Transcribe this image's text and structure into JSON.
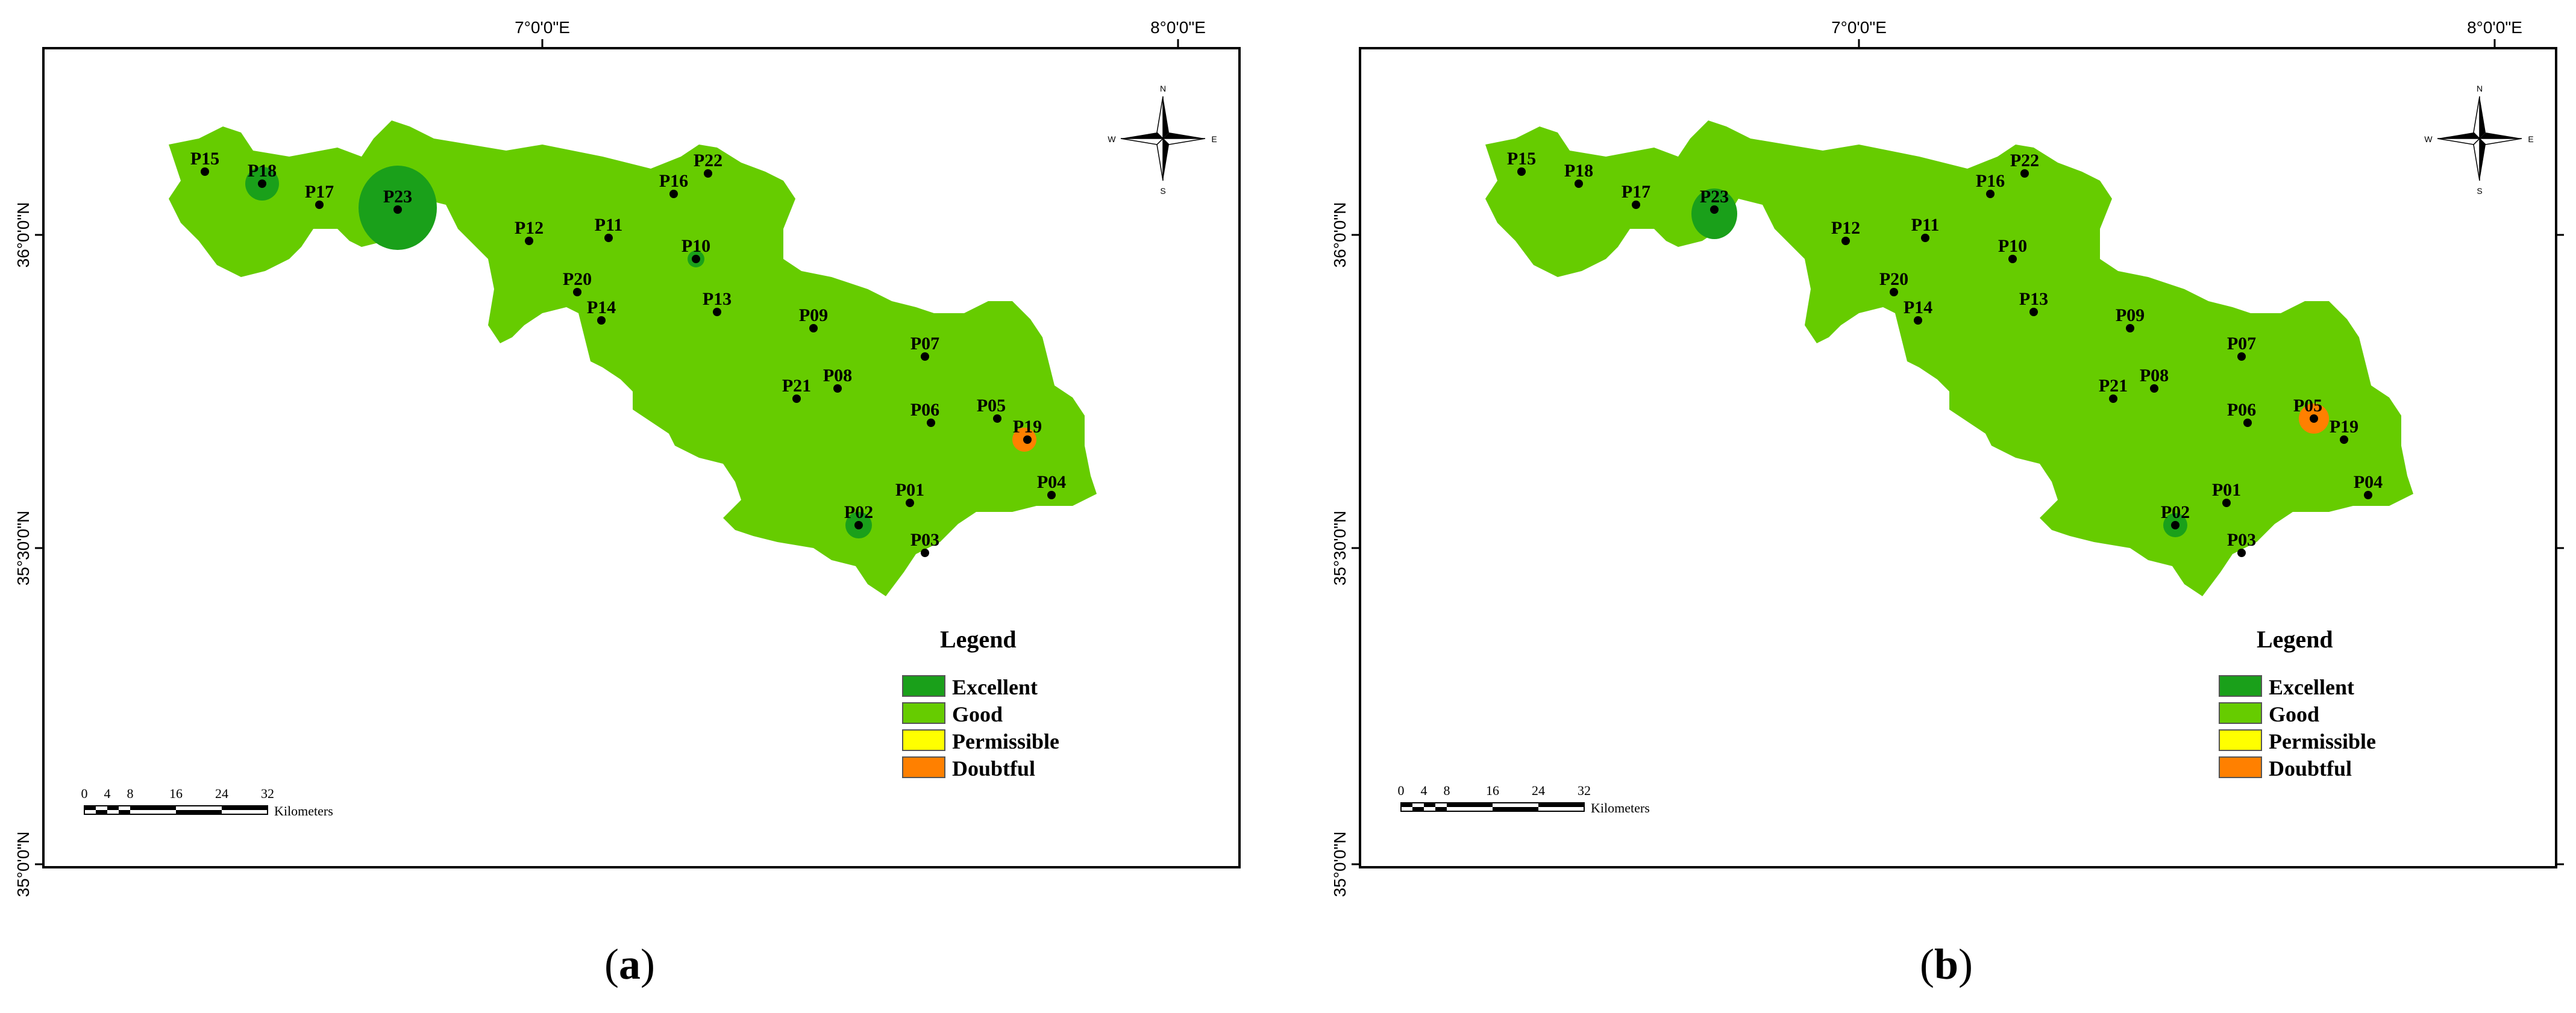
{
  "colors": {
    "excellent": "#1aa01a",
    "good": "#66cc00",
    "permissible": "#ffff00",
    "doubtful": "#ff8000"
  },
  "coords": {
    "lon1": "7°0'0\"E",
    "lon2": "8°0'0\"E",
    "lat1": "36°0'0\"N",
    "lat2": "35°30'0\"N",
    "lat3": "35°0'0\"N"
  },
  "compass": {
    "n": "N",
    "s": "S",
    "e": "E",
    "w": "W"
  },
  "legend": {
    "title": "Legend",
    "items": [
      {
        "label": "Excellent",
        "color": "#1aa01a"
      },
      {
        "label": "Good",
        "color": "#66cc00"
      },
      {
        "label": "Permissible",
        "color": "#ffff00"
      },
      {
        "label": "Doubtful",
        "color": "#ff8000"
      }
    ]
  },
  "scale": {
    "ticks": [
      "0",
      "4",
      "8",
      "16",
      "24",
      "32"
    ],
    "unit": "Kilometers"
  },
  "points": [
    "P01",
    "P02",
    "P03",
    "P04",
    "P05",
    "P06",
    "P07",
    "P08",
    "P09",
    "P10",
    "P11",
    "P12",
    "P13",
    "P14",
    "P15",
    "P16",
    "P17",
    "P18",
    "P19",
    "P20",
    "P21",
    "P22",
    "P23"
  ],
  "panels": [
    {
      "caption": "a",
      "excellent_points": [
        "P18",
        "P23",
        "P02",
        "P10"
      ],
      "doubtful_points": [
        "P19"
      ]
    },
    {
      "caption": "b",
      "excellent_points": [
        "P23",
        "P02"
      ],
      "doubtful_points": [
        "P05"
      ]
    }
  ]
}
